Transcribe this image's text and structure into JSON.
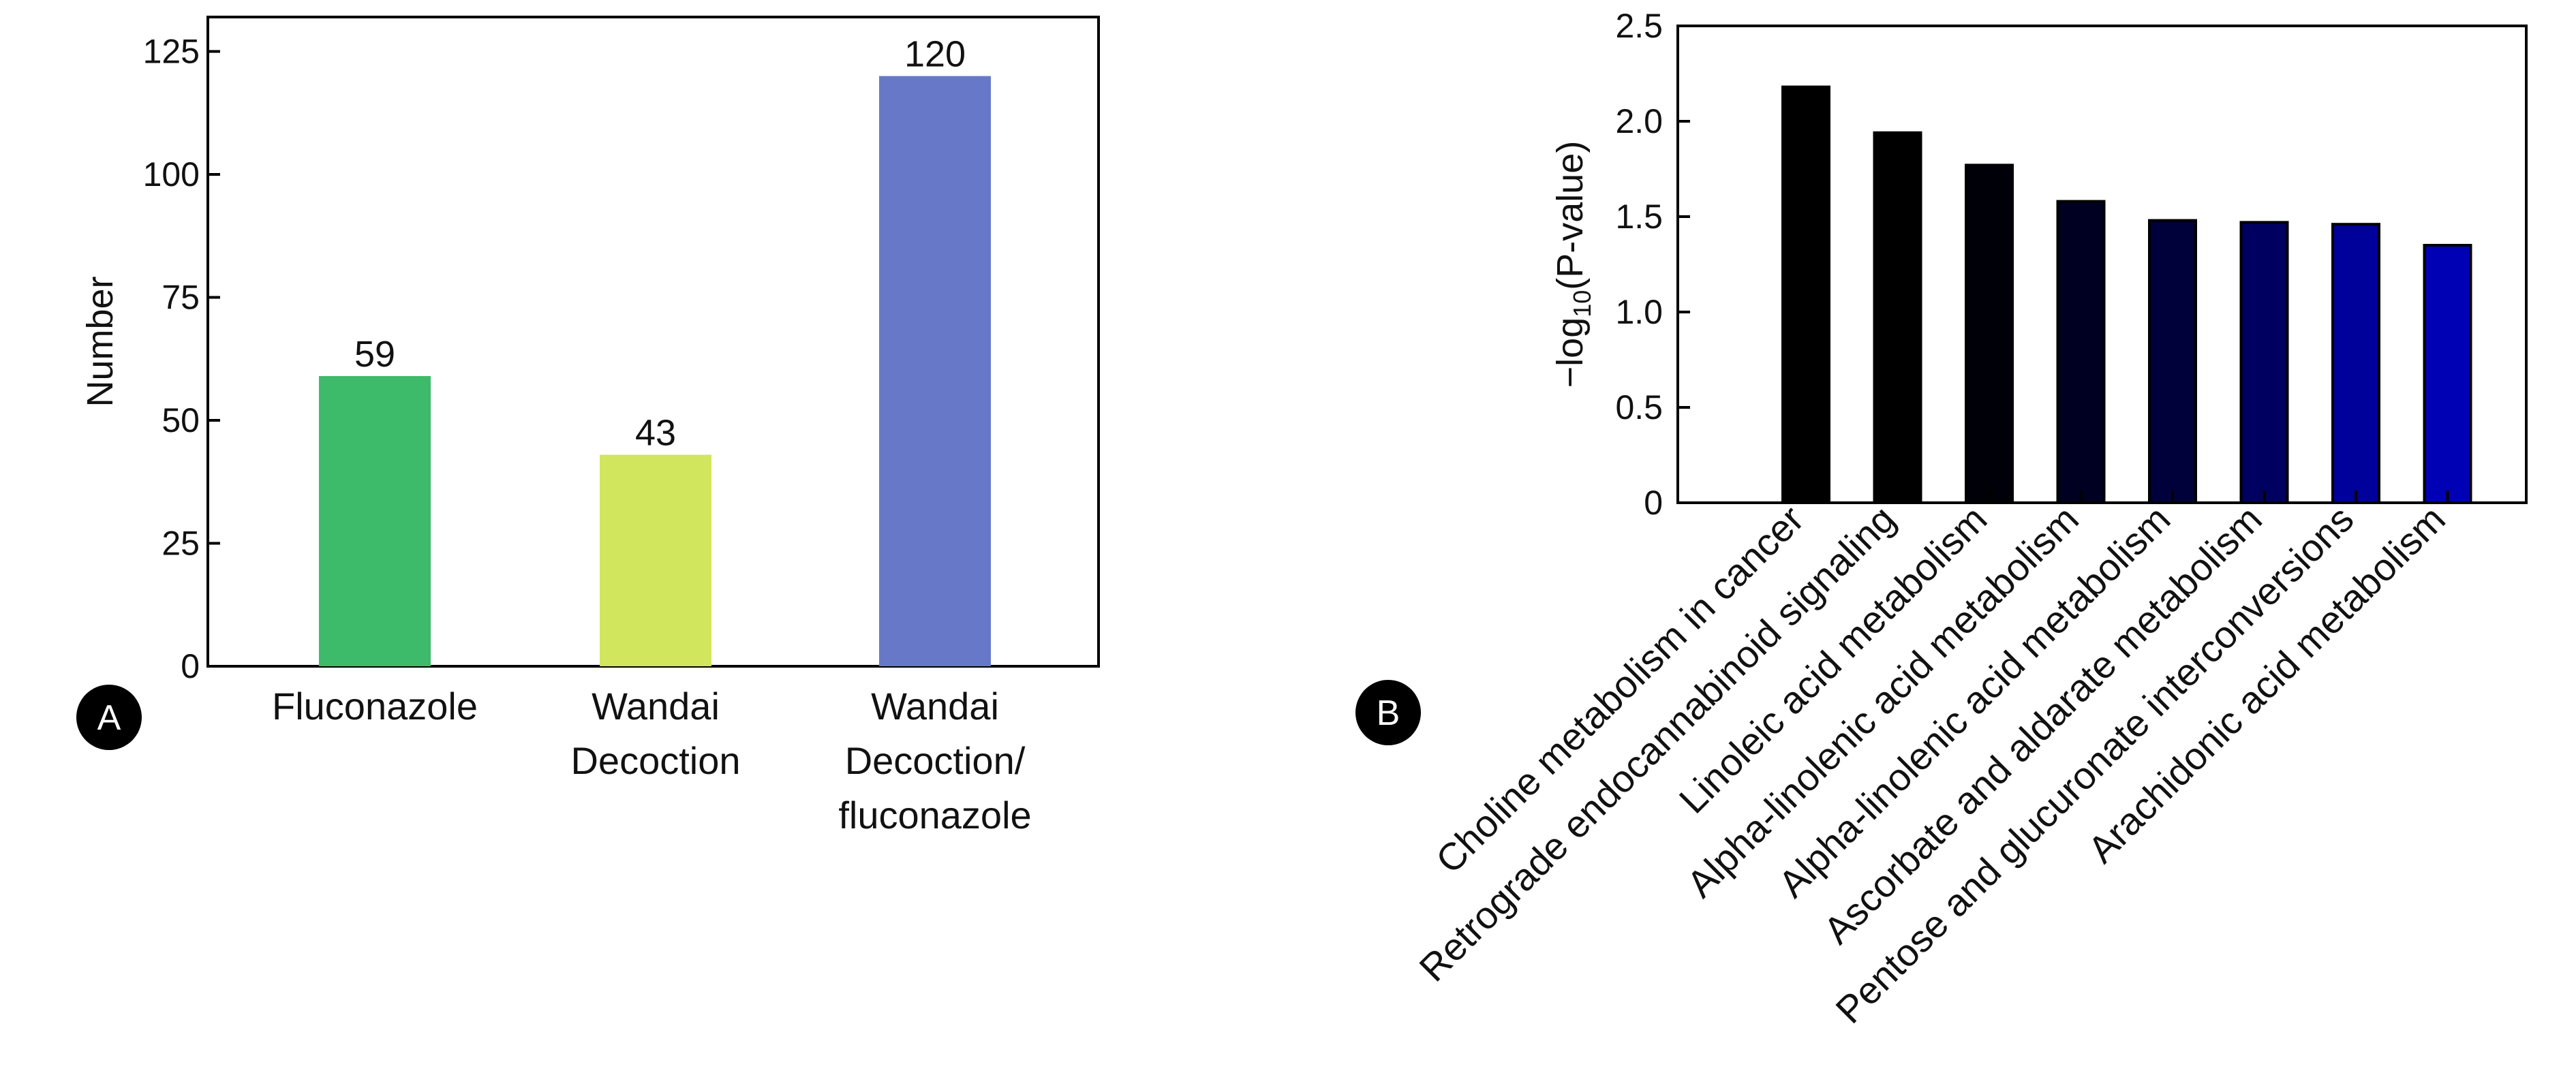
{
  "chart_data": [
    {
      "type": "bar",
      "panel": "A",
      "categories": [
        "Fluconazole",
        "Wandai Decoction",
        "Wandai Decoction/ fluconazole"
      ],
      "category_lines": [
        [
          "Fluconazole"
        ],
        [
          "Wandai",
          "Decoction"
        ],
        [
          "Wandai",
          "Decoction/",
          "fluconazole"
        ]
      ],
      "values": [
        59,
        43,
        120
      ],
      "value_labels": [
        "59",
        "43",
        "120"
      ],
      "colors": [
        "#3dba6a",
        "#d1e65c",
        "#6878c8"
      ],
      "ylabel": "Number",
      "ylim": [
        0,
        132
      ],
      "yticks": [
        0,
        25,
        50,
        75,
        100,
        125
      ],
      "ytick_labels": [
        "0",
        "25",
        "50",
        "75",
        "100",
        "125"
      ]
    },
    {
      "type": "bar",
      "panel": "B",
      "categories": [
        "Choline metabolism in cancer",
        "Retrograde endocannabinoid signaling",
        "Linoleic acid metabolism",
        "Alpha-linolenic acid metabolism",
        "Alpha-linolenic acid metabolism",
        "Ascorbate and aldarate metabolism",
        "Pentose and glucuronate interconversions",
        "Arachidonic acid metabolism"
      ],
      "values": [
        2.18,
        1.94,
        1.77,
        1.58,
        1.48,
        1.47,
        1.46,
        1.35
      ],
      "colors": [
        "#000000",
        "#000000",
        "#000008",
        "#000022",
        "#00003a",
        "#000060",
        "#00009a",
        "#0000b4"
      ],
      "ylabel_prefix": "−log",
      "ylabel_sub": "10",
      "ylabel_suffix": "(P-value)",
      "ylim": [
        0,
        2.5
      ],
      "yticks": [
        0,
        0.5,
        1.0,
        1.5,
        2.0,
        2.5
      ],
      "ytick_labels": [
        "0",
        "0.5",
        "1.0",
        "1.5",
        "2.0",
        "2.5"
      ]
    }
  ],
  "panel_labels": [
    "A",
    "B"
  ]
}
